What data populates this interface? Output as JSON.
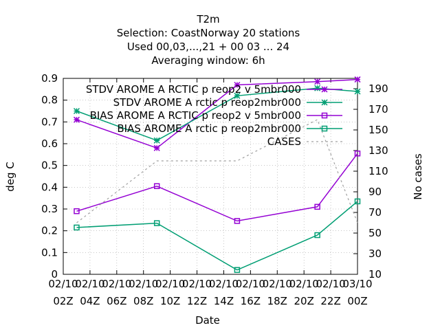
{
  "chart_data": {
    "type": "line",
    "title_lines": [
      "T2m",
      "Selection: CoastNorway     20 stations",
      "Used  00,03,...,21  + 00 03 ... 24",
      "Averaging window:  6h"
    ],
    "xlabel": "Date",
    "ylabel": "deg C",
    "y2label": "No cases",
    "x_tick_labels": [
      [
        "02/10",
        "02Z"
      ],
      [
        "02/10",
        "04Z"
      ],
      [
        "02/10",
        "06Z"
      ],
      [
        "02/10",
        "08Z"
      ],
      [
        "02/10",
        "10Z"
      ],
      [
        "02/10",
        "12Z"
      ],
      [
        "02/10",
        "14Z"
      ],
      [
        "02/10",
        "16Z"
      ],
      [
        "02/10",
        "18Z"
      ],
      [
        "02/10",
        "20Z"
      ],
      [
        "02/10",
        "22Z"
      ],
      [
        "03/10",
        "00Z"
      ]
    ],
    "x_tick_hours": [
      2,
      4,
      6,
      8,
      10,
      12,
      14,
      16,
      18,
      20,
      22,
      24
    ],
    "xlim_hours": [
      2,
      24
    ],
    "y_ticks": [
      "0",
      "0.1",
      "0.2",
      "0.3",
      "0.4",
      "0.5",
      "0.6",
      "0.7",
      "0.8",
      "0.9"
    ],
    "ylim": [
      0,
      0.9
    ],
    "y2_ticks": [
      "10",
      "30",
      "50",
      "70",
      "90",
      "110",
      "130",
      "150",
      "170",
      "190"
    ],
    "y2lim": [
      10,
      200
    ],
    "grid": true,
    "legend_position": "top-right",
    "series": [
      {
        "name": "STDV AROME_ARCTIC_prep2_v5mbr000",
        "legend_text": "STDV AROME A RCTIC p reop2 v 5mbr000",
        "color": "#9400d3",
        "marker": "x-star",
        "axis": "y1",
        "x_hours": [
          3,
          9,
          15,
          21,
          24
        ],
        "values": [
          0.71,
          0.58,
          0.87,
          0.885,
          0.895
        ]
      },
      {
        "name": "STDV AROME_Arctic_prep2mbr000",
        "legend_text": "STDV AROME A rctic p reop2mbr000",
        "color": "#009e73",
        "marker": "x-star",
        "axis": "y1",
        "x_hours": [
          3,
          9,
          15,
          21,
          24
        ],
        "values": [
          0.75,
          0.615,
          0.82,
          0.855,
          0.84
        ]
      },
      {
        "name": "BIAS AROME_ARCTIC_prep2_v5mbr000",
        "legend_text": "BIAS AROME A RCTIC p reop2 v 5mbr000",
        "color": "#9400d3",
        "marker": "square",
        "axis": "y1",
        "x_hours": [
          3,
          9,
          15,
          21,
          24
        ],
        "values": [
          0.29,
          0.405,
          0.245,
          0.31,
          0.555
        ]
      },
      {
        "name": "BIAS AROME_Arctic_prep2mbr000",
        "legend_text": "BIAS AROME A rctic p reop2mbr000",
        "color": "#009e73",
        "marker": "square",
        "axis": "y1",
        "x_hours": [
          3,
          9,
          15,
          21,
          24
        ],
        "values": [
          0.215,
          0.235,
          0.02,
          0.18,
          0.335
        ]
      },
      {
        "name": "CASES",
        "legend_text": "CASES",
        "color": "#a0a0a0",
        "marker": "none",
        "dashed": true,
        "axis": "y2",
        "x_hours": [
          3,
          9,
          15,
          21,
          24
        ],
        "values": [
          60,
          120,
          120,
          160,
          60
        ]
      }
    ]
  }
}
